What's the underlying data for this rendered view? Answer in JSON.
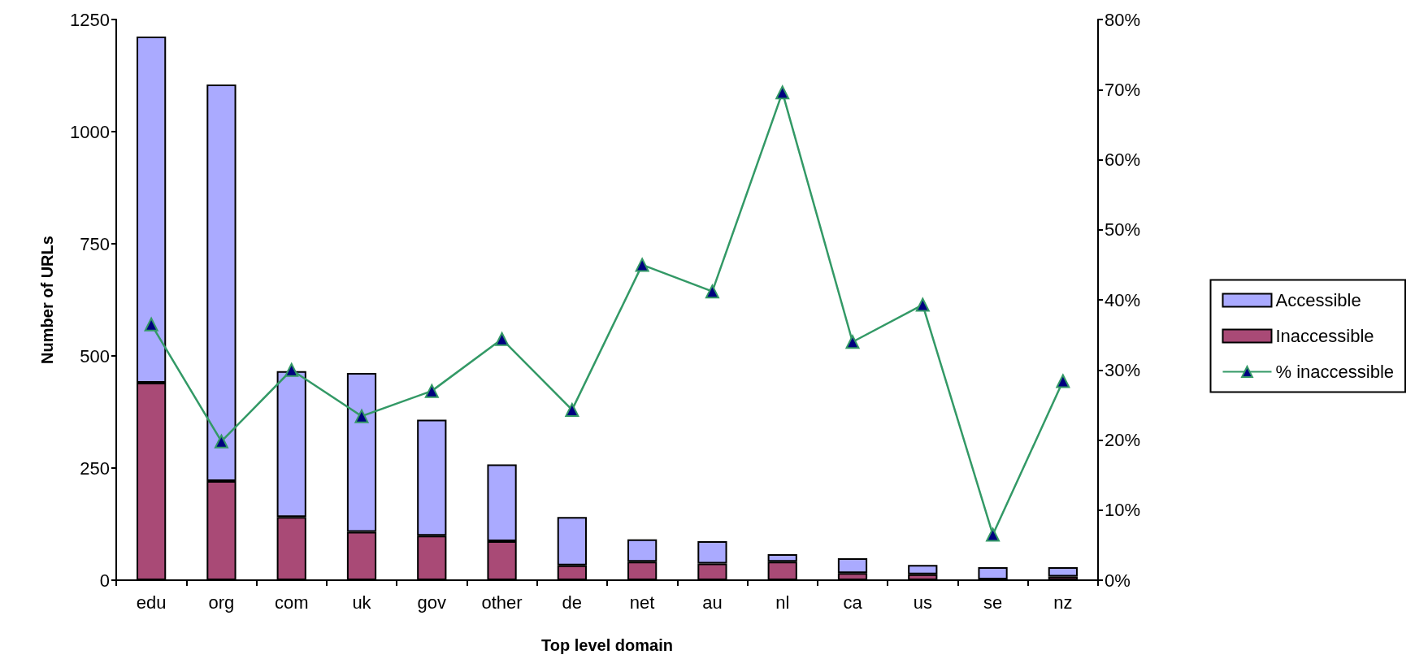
{
  "chart_data": {
    "type": "bar",
    "xlabel": "Top level domain",
    "ylabel": "Number of URLs",
    "categories": [
      "edu",
      "org",
      "com",
      "uk",
      "gov",
      "other",
      "de",
      "net",
      "au",
      "nl",
      "ca",
      "us",
      "se",
      "nz"
    ],
    "stacked": true,
    "series": [
      {
        "name": "Inaccessible",
        "color": "#a94a76",
        "values": [
          440,
          221,
          141,
          108,
          99,
          87,
          33,
          41,
          37,
          41,
          16,
          13,
          2,
          8
        ]
      },
      {
        "name": "Accessible",
        "color": "#aaaaff",
        "values": [
          772,
          884,
          325,
          354,
          259,
          171,
          108,
          50,
          50,
          17,
          33,
          21,
          27,
          21
        ]
      },
      {
        "name": "% inaccessible",
        "type": "line",
        "axis": "y2",
        "color": "#339966",
        "values": [
          36.5,
          19.8,
          30,
          23.4,
          27,
          34.4,
          24.3,
          45,
          41.2,
          69.6,
          34,
          39.3,
          6.5,
          28.4
        ]
      }
    ],
    "ylim": [
      0,
      1250
    ],
    "yticks": [
      0,
      250,
      500,
      750,
      1000,
      1250
    ],
    "y2lim": [
      0,
      80
    ],
    "y2ticks": [
      {
        "value": 0,
        "label": "0%"
      },
      {
        "value": 10,
        "label": "10%"
      },
      {
        "value": 20,
        "label": "20%"
      },
      {
        "value": 30,
        "label": "30%"
      },
      {
        "value": 40,
        "label": "40%"
      },
      {
        "value": 50,
        "label": "50%"
      },
      {
        "value": 60,
        "label": "60%"
      },
      {
        "value": 70,
        "label": "70%"
      },
      {
        "value": 80,
        "label": "80%"
      }
    ],
    "legend": "right",
    "marker": "triangle",
    "grid": false
  }
}
